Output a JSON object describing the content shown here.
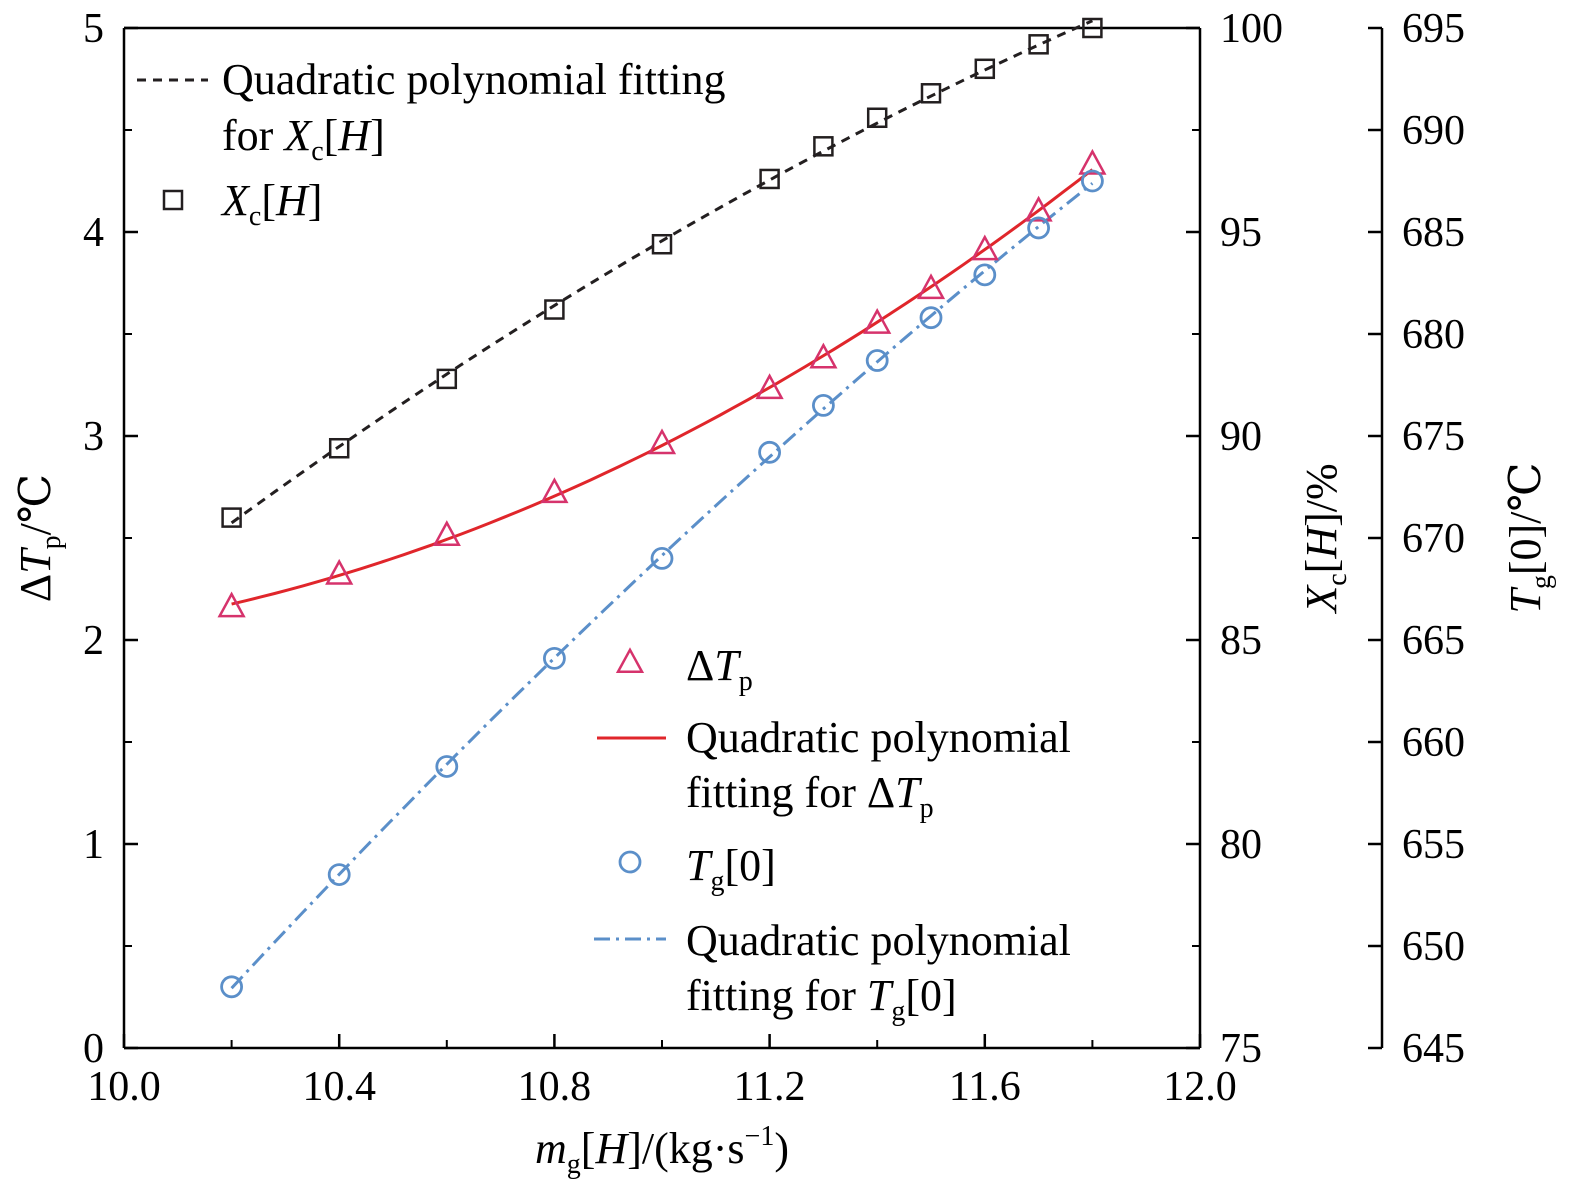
{
  "chart_data": {
    "type": "scatter",
    "grid": false,
    "x_axis": {
      "range": [
        10.0,
        12.0
      ],
      "ticks": [
        "10.0",
        "10.4",
        "10.8",
        "11.2",
        "11.6",
        "12.0"
      ],
      "label_parts": [
        "m",
        "g",
        "[",
        "H",
        "]/(kg·s",
        "−1",
        ")"
      ]
    },
    "y_axes": [
      {
        "side": "left",
        "range": [
          0,
          5
        ],
        "ticks": [
          "0",
          "1",
          "2",
          "3",
          "4",
          "5"
        ],
        "label_parts": [
          "Δ",
          "T",
          "p",
          "/℃"
        ]
      },
      {
        "side": "right",
        "range": [
          75,
          100
        ],
        "ticks": [
          "75",
          "80",
          "85",
          "90",
          "95",
          "100"
        ],
        "label_parts": [
          "X",
          "c",
          "[",
          "H",
          "]/%"
        ]
      },
      {
        "side": "right-offset",
        "range": [
          645,
          695
        ],
        "ticks": [
          "645",
          "650",
          "655",
          "660",
          "665",
          "670",
          "675",
          "680",
          "685",
          "690",
          "695"
        ],
        "label_parts": [
          "T",
          "g",
          "[0]/℃"
        ]
      }
    ],
    "x": [
      10.2,
      10.4,
      10.6,
      10.8,
      11.0,
      11.2,
      11.3,
      11.4,
      11.5,
      11.6,
      11.7,
      11.8
    ],
    "series": [
      {
        "key": "xc",
        "axis": 1,
        "marker": "square",
        "color": "#231f20",
        "values": [
          88.0,
          89.7,
          91.4,
          93.1,
          94.7,
          96.3,
          97.1,
          97.8,
          98.4,
          99.0,
          99.6,
          100.0
        ]
      },
      {
        "key": "dtp",
        "axis": 0,
        "marker": "triangle",
        "color": "#d6336c",
        "fit_color": "#e0262b",
        "values": [
          2.16,
          2.32,
          2.51,
          2.72,
          2.96,
          3.23,
          3.38,
          3.55,
          3.72,
          3.91,
          4.1,
          4.33
        ]
      },
      {
        "key": "tg0",
        "axis": 2,
        "marker": "circle",
        "color": "#5b8fc9",
        "fit_color": "#5b8fc9",
        "values": [
          648.0,
          653.5,
          658.8,
          664.1,
          669.0,
          674.2,
          676.5,
          678.7,
          680.8,
          682.9,
          685.2,
          687.5
        ]
      }
    ],
    "legend_top": [
      {
        "kind": "dashed-line",
        "color": "#231f20",
        "line1": "Quadratic polynomial fitting",
        "line2_prefix": "for ",
        "line2_parts": [
          "X",
          "c",
          "[",
          "H",
          "]"
        ]
      },
      {
        "kind": "square",
        "color": "#231f20",
        "parts": [
          "X",
          "c",
          "[",
          "H",
          "]"
        ]
      }
    ],
    "legend_bottom": [
      {
        "kind": "triangle",
        "color": "#d6336c",
        "parts": [
          "Δ",
          "T",
          "p"
        ]
      },
      {
        "kind": "solid-line",
        "color": "#e0262b",
        "line1": "Quadratic polynomial",
        "line2_prefix": "fitting for Δ",
        "line2_parts": [
          "T",
          "p"
        ]
      },
      {
        "kind": "circle",
        "color": "#5b8fc9",
        "parts": [
          "T",
          "g",
          "[0]"
        ]
      },
      {
        "kind": "dashdot-line",
        "color": "#5b8fc9",
        "line1": "Quadratic polynomial",
        "line2_prefix": "fitting for ",
        "line2_parts": [
          "T",
          "g",
          "[0]"
        ]
      }
    ]
  }
}
